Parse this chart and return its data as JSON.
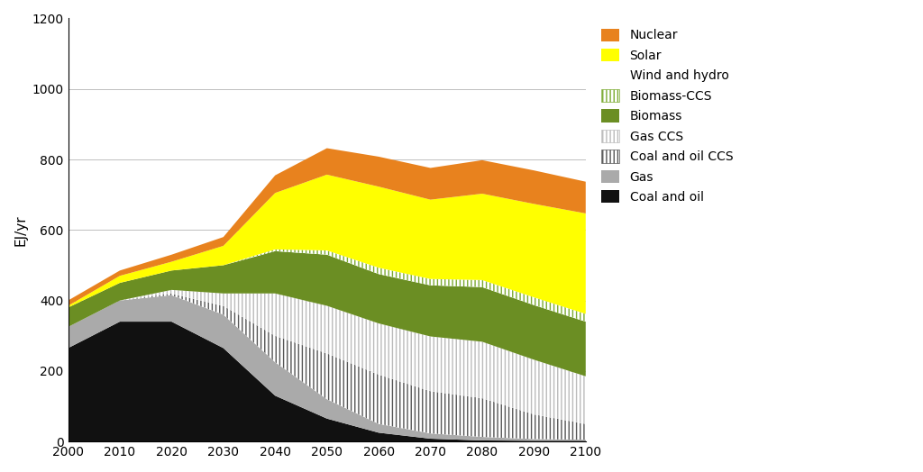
{
  "years": [
    2000,
    2010,
    2020,
    2030,
    2040,
    2050,
    2060,
    2070,
    2080,
    2090,
    2100
  ],
  "coal_and_oil": [
    265,
    340,
    340,
    265,
    130,
    65,
    25,
    8,
    3,
    2,
    2
  ],
  "gas": [
    60,
    60,
    75,
    95,
    95,
    55,
    25,
    15,
    10,
    5,
    3
  ],
  "coal_oil_ccs": [
    0,
    0,
    5,
    25,
    75,
    130,
    140,
    120,
    110,
    70,
    45
  ],
  "gas_ccs": [
    0,
    0,
    10,
    35,
    120,
    135,
    145,
    155,
    160,
    155,
    135
  ],
  "biomass": [
    55,
    50,
    55,
    80,
    120,
    145,
    140,
    145,
    155,
    155,
    155
  ],
  "biomass_ccs": [
    0,
    0,
    0,
    0,
    5,
    12,
    18,
    18,
    20,
    22,
    22
  ],
  "wind_hydro": [
    0,
    0,
    0,
    0,
    0,
    0,
    0,
    0,
    0,
    0,
    0
  ],
  "solar": [
    5,
    20,
    25,
    55,
    160,
    215,
    230,
    225,
    245,
    265,
    285
  ],
  "nuclear": [
    15,
    15,
    20,
    25,
    50,
    75,
    85,
    90,
    95,
    95,
    90
  ],
  "colors": {
    "coal_and_oil": "#111111",
    "gas": "#aaaaaa",
    "coal_oil_ccs": "#777777",
    "gas_ccs": "#dddddd",
    "biomass": "#6b8e23",
    "biomass_ccs": "#a8c860",
    "wind_hydro": "#ffffff",
    "solar": "#ffff00",
    "nuclear": "#e8821e"
  },
  "hatch_styles": {
    "coal_oil_ccs": {
      "hatch": "||||",
      "facecolor": "white",
      "edgecolor": "#555555"
    },
    "gas_ccs": {
      "hatch": "||||",
      "facecolor": "white",
      "edgecolor": "#bbbbbb"
    },
    "biomass_ccs": {
      "hatch": "||||",
      "facecolor": "white",
      "edgecolor": "#7aaa30"
    }
  },
  "legend_order": [
    "nuclear",
    "solar",
    "wind_hydro",
    "biomass_ccs",
    "biomass",
    "gas_ccs",
    "coal_oil_ccs",
    "gas",
    "coal_and_oil"
  ],
  "legend_labels": {
    "nuclear": "Nuclear",
    "solar": "Solar",
    "wind_hydro": "Wind and hydro",
    "biomass_ccs": "Biomass-CCS",
    "biomass": "Biomass",
    "gas_ccs": "Gas CCS",
    "coal_oil_ccs": "Coal and oil CCS",
    "gas": "Gas",
    "coal_and_oil": "Coal and oil"
  },
  "stack_order": [
    "coal_and_oil",
    "gas",
    "coal_oil_ccs",
    "gas_ccs",
    "biomass",
    "biomass_ccs",
    "wind_hydro",
    "solar",
    "nuclear"
  ],
  "ylabel": "EJ/yr",
  "ylim": [
    0,
    1200
  ],
  "yticks": [
    0,
    200,
    400,
    600,
    800,
    1000,
    1200
  ],
  "xlim": [
    2000,
    2100
  ],
  "xticks": [
    2000,
    2010,
    2020,
    2030,
    2040,
    2050,
    2060,
    2070,
    2080,
    2090,
    2100
  ],
  "figsize": [
    10.24,
    5.24
  ],
  "dpi": 100
}
